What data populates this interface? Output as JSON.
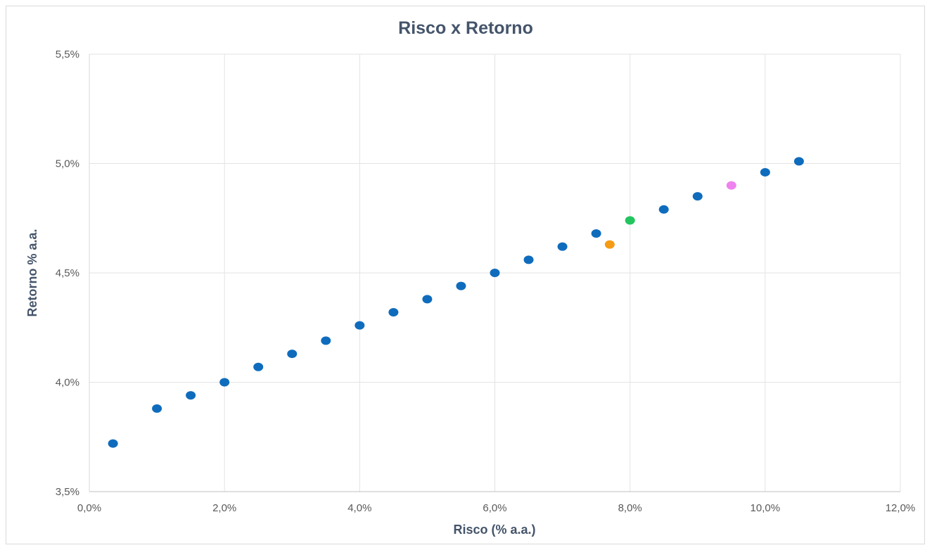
{
  "chart_data": {
    "type": "scatter",
    "title": "Risco x Retorno",
    "xlabel": "Risco (% a.a.)",
    "ylabel": "Retorno % a.a.",
    "xlim": [
      0,
      12
    ],
    "ylim": [
      3.5,
      5.5
    ],
    "x_ticks": [
      "0,0%",
      "2,0%",
      "4,0%",
      "6,0%",
      "8,0%",
      "10,0%",
      "12,0%"
    ],
    "y_ticks": [
      "3,5%",
      "4,0%",
      "4,5%",
      "5,0%",
      "5,5%"
    ],
    "x_tick_values": [
      0,
      2,
      4,
      6,
      8,
      10,
      12
    ],
    "y_tick_values": [
      3.5,
      4.0,
      4.5,
      5.0,
      5.5
    ],
    "grid": true,
    "legend": "none",
    "series": [
      {
        "color": "#0f6cbd",
        "points": [
          {
            "x": 0.35,
            "y": 3.72
          },
          {
            "x": 1.0,
            "y": 3.88
          },
          {
            "x": 1.5,
            "y": 3.94
          },
          {
            "x": 2.0,
            "y": 4.0
          },
          {
            "x": 2.5,
            "y": 4.07
          },
          {
            "x": 3.0,
            "y": 4.13
          },
          {
            "x": 3.5,
            "y": 4.19
          },
          {
            "x": 4.0,
            "y": 4.26
          },
          {
            "x": 4.5,
            "y": 4.32
          },
          {
            "x": 5.0,
            "y": 4.38
          },
          {
            "x": 5.5,
            "y": 4.44
          },
          {
            "x": 6.0,
            "y": 4.5
          },
          {
            "x": 6.5,
            "y": 4.56
          },
          {
            "x": 7.0,
            "y": 4.62
          },
          {
            "x": 7.5,
            "y": 4.68
          },
          {
            "x": 8.5,
            "y": 4.79
          },
          {
            "x": 9.0,
            "y": 4.85
          },
          {
            "x": 10.0,
            "y": 4.96
          },
          {
            "x": 10.5,
            "y": 5.01
          }
        ]
      },
      {
        "color": "#f59b14",
        "points": [
          {
            "x": 7.7,
            "y": 4.63
          }
        ]
      },
      {
        "color": "#22c55e",
        "points": [
          {
            "x": 8.0,
            "y": 4.74
          }
        ]
      },
      {
        "color": "#ee82ee",
        "points": [
          {
            "x": 9.5,
            "y": 4.9
          }
        ]
      }
    ]
  }
}
